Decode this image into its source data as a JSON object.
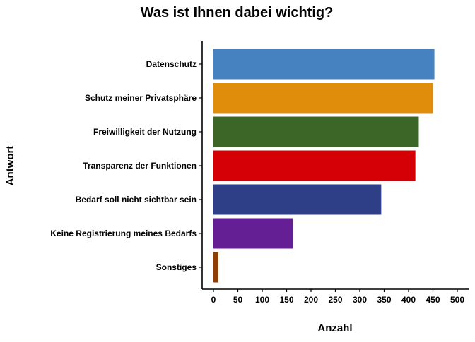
{
  "chart_data": {
    "type": "bar",
    "orientation": "horizontal",
    "title": "Was ist Ihnen dabei wichtig?",
    "xlabel": "Anzahl",
    "ylabel": "Antwort",
    "categories": [
      "Datenschutz",
      "Schutz meiner Privatsphäre",
      "Freiwilligkeit der Nutzung",
      "Transparenz der Funktionen",
      "Bedarf soll nicht sichtbar sein",
      "Keine Registrierung meines Bedarfs",
      "Sonstiges"
    ],
    "values": [
      453,
      450,
      421,
      414,
      344,
      163,
      10
    ],
    "colors": [
      "#4682c0",
      "#df8d0b",
      "#3c6627",
      "#d50005",
      "#2e3f87",
      "#641f94",
      "#8f3f06"
    ],
    "xlim": [
      0,
      500
    ],
    "xticks": [
      "0",
      "50",
      "100",
      "150",
      "200",
      "250",
      "300",
      "350",
      "400",
      "450",
      "500"
    ],
    "grid": false,
    "legend": "none"
  }
}
